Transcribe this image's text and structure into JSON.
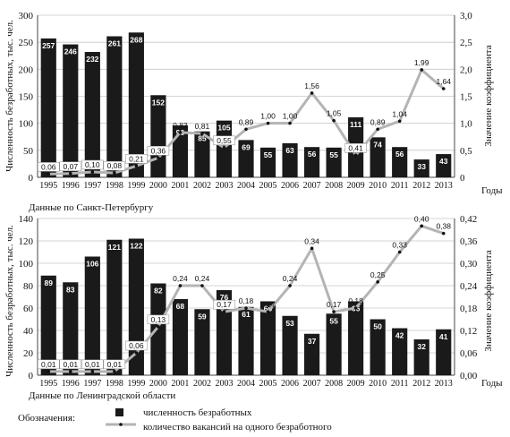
{
  "chart_data": [
    {
      "type": "bar",
      "caption": "Данные по Санкт-Петербургу",
      "xlabel": "Годы",
      "ylabel": "Численность безработных, тыс. чел.",
      "y2label": "Значение коэффициента",
      "categories": [
        "1995",
        "1996",
        "1997",
        "1998",
        "1999",
        "2000",
        "2001",
        "2002",
        "2003",
        "2004",
        "2005",
        "2006",
        "2007",
        "2008",
        "2009",
        "2010",
        "2011",
        "2012",
        "2013"
      ],
      "ylim": [
        0,
        300
      ],
      "y_ticks": [
        "0",
        "50",
        "100",
        "150",
        "200",
        "250",
        "300"
      ],
      "y2lim": [
        0,
        3.0
      ],
      "y2_ticks": [
        "0",
        "0,5",
        "1,0",
        "1,5",
        "2,0",
        "2,5",
        "3,0"
      ],
      "series": [
        {
          "name": "численность безработных",
          "kind": "bar",
          "axis": "left",
          "values": [
            257,
            246,
            232,
            261,
            268,
            152,
            96,
            85,
            105,
            69,
            55,
            63,
            56,
            55,
            111,
            74,
            56,
            33,
            43
          ],
          "labels": [
            "257",
            "246",
            "232",
            "261",
            "268",
            "152",
            "96",
            "85",
            "105",
            "69",
            "55",
            "63",
            "56",
            "55",
            "111",
            "74",
            "56",
            "33",
            "43"
          ]
        },
        {
          "name": "количество вакансий на одного безработного",
          "kind": "line",
          "axis": "right",
          "values": [
            0.06,
            0.07,
            0.1,
            0.08,
            0.21,
            0.36,
            0.83,
            0.81,
            0.55,
            0.89,
            1.0,
            1.0,
            1.56,
            1.05,
            0.41,
            0.89,
            1.04,
            1.99,
            1.64
          ],
          "labels": [
            "0,06",
            "0,07",
            "0,10",
            "0,08",
            "0,21",
            "0,36",
            "0,83",
            "0,81",
            "0,55",
            "0,89",
            "1,00",
            "1,00",
            "1,56",
            "1,05",
            "0,41",
            "0,89",
            "1,04",
            "1,99",
            "1,64"
          ]
        }
      ]
    },
    {
      "type": "bar",
      "caption": "Данные по Ленинградской области",
      "xlabel": "Годы",
      "ylabel": "Численность безработных, тыс. чел.",
      "y2label": "Значение коэффициента",
      "categories": [
        "1995",
        "1996",
        "1997",
        "1998",
        "1999",
        "2000",
        "2001",
        "2002",
        "2003",
        "2004",
        "2005",
        "2006",
        "2007",
        "2008",
        "2009",
        "2010",
        "2011",
        "2012",
        "2013"
      ],
      "ylim": [
        0,
        140
      ],
      "y_ticks": [
        "0",
        "20",
        "40",
        "60",
        "80",
        "100",
        "120",
        "140"
      ],
      "y2lim": [
        0,
        0.42
      ],
      "y2_ticks": [
        "0,00",
        "0,06",
        "0,12",
        "0,18",
        "0,24",
        "0,30",
        "0,36",
        "0,42"
      ],
      "series": [
        {
          "name": "численность безработных",
          "kind": "bar",
          "axis": "left",
          "values": [
            89,
            83,
            106,
            121,
            122,
            82,
            68,
            59,
            76,
            61,
            66,
            53,
            37,
            55,
            66,
            50,
            42,
            32,
            41
          ],
          "labels": [
            "89",
            "83",
            "106",
            "121",
            "122",
            "82",
            "68",
            "59",
            "76",
            "61",
            "66",
            "53",
            "37",
            "55",
            "66",
            "50",
            "42",
            "32",
            "41"
          ]
        },
        {
          "name": "количество вакансий на одного безработного",
          "kind": "line",
          "axis": "right",
          "values": [
            0.01,
            0.01,
            0.01,
            0.01,
            0.06,
            0.13,
            0.24,
            0.24,
            0.17,
            0.18,
            0.17,
            0.24,
            0.34,
            0.17,
            0.18,
            0.25,
            0.33,
            0.4,
            0.38
          ],
          "labels": [
            "0,01",
            "0,01",
            "0,01",
            "0,01",
            "0,06",
            "0,13",
            "0,24",
            "0,24",
            "0,17",
            "0,18",
            "0,17",
            "0,24",
            "0,34",
            "0,17",
            "0,18",
            "0,25",
            "0,33",
            "0,40",
            "0,38"
          ]
        }
      ]
    }
  ],
  "legend": {
    "title": "Обозначения:",
    "bar_label": "численность безработных",
    "line_label": "количество вакансий на одного безработного"
  },
  "colors": {
    "bar": "#1a1a1a",
    "line": "#b4b4b4",
    "marker": "#111111"
  }
}
